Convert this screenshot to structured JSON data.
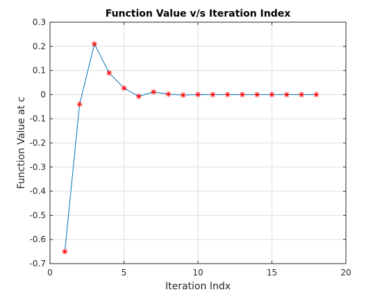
{
  "chart_data": {
    "type": "line",
    "title": "Function Value v/s Iteration Index",
    "xlabel": "Iteration Indx",
    "ylabel": "Function Value at c",
    "xlim": [
      0,
      20
    ],
    "ylim": [
      -0.7,
      0.3
    ],
    "xticks": [
      0,
      5,
      10,
      15,
      20
    ],
    "yticks": [
      0.3,
      0.2,
      0.1,
      0,
      -0.1,
      -0.2,
      -0.3,
      -0.4,
      -0.5,
      -0.6,
      -0.7
    ],
    "xtick_labels": [
      "0",
      "5",
      "10",
      "15",
      "20"
    ],
    "ytick_labels": [
      "0.3",
      "0.2",
      "0.1",
      "0",
      "-0.1",
      "-0.2",
      "-0.3",
      "-0.4",
      "-0.5",
      "-0.6",
      "-0.7"
    ],
    "grid": true,
    "box": true,
    "series": [
      {
        "x": [
          1,
          2,
          3,
          4,
          5,
          6,
          7,
          8,
          9,
          10,
          11,
          12,
          13,
          14,
          15,
          16,
          17,
          18
        ],
        "y": [
          -0.65,
          -0.04,
          0.21,
          0.09,
          0.027,
          -0.007,
          0.011,
          0.002,
          -0.002,
          0.0005,
          0,
          0,
          0,
          0,
          0,
          0,
          0,
          0
        ],
        "line_color": "#0072BD",
        "marker": "asterisk",
        "marker_color": "#FF0000"
      }
    ]
  }
}
